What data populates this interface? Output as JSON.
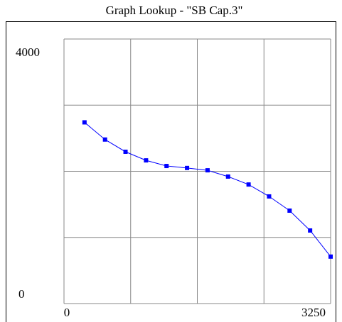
{
  "chart_data": {
    "type": "line",
    "title": "Graph Lookup - \"SB Cap.3\"",
    "x": [
      250,
      500,
      750,
      1000,
      1250,
      1500,
      1750,
      2000,
      2250,
      2500,
      2750,
      3000,
      3250
    ],
    "series": [
      {
        "color": "#0000ff",
        "values": [
          2740,
          2480,
          2295,
          2165,
          2080,
          2050,
          2015,
          1920,
          1800,
          1620,
          1405,
          1105,
          710
        ]
      }
    ],
    "xlim": [
      0,
      3250
    ],
    "ylim": [
      0,
      4000
    ],
    "xticks": [
      0,
      3250
    ],
    "yticks": [
      0,
      4000
    ],
    "grid": {
      "divisions": 4
    }
  }
}
